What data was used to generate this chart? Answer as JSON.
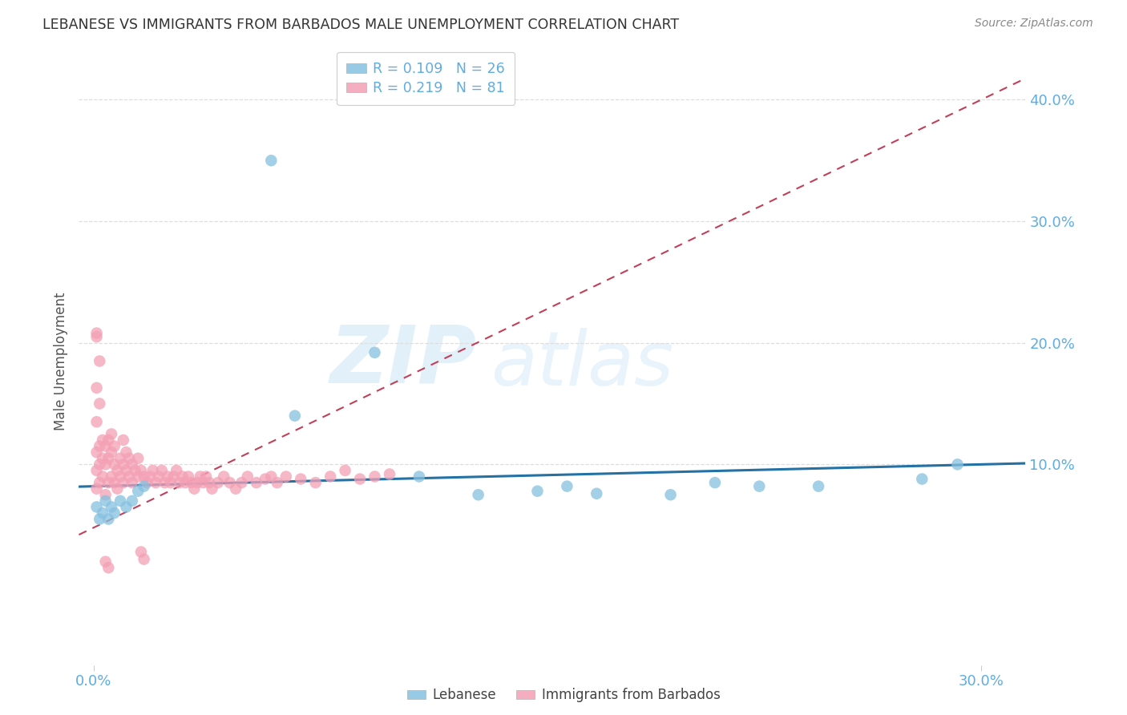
{
  "title": "LEBANESE VS IMMIGRANTS FROM BARBADOS MALE UNEMPLOYMENT CORRELATION CHART",
  "source": "Source: ZipAtlas.com",
  "ylabel": "Male Unemployment",
  "ytick_labels": [
    "40.0%",
    "30.0%",
    "20.0%",
    "10.0%"
  ],
  "ytick_values": [
    0.4,
    0.3,
    0.2,
    0.1
  ],
  "xtick_labels": [
    "0.0%",
    "30.0%"
  ],
  "xtick_values": [
    0.0,
    0.3
  ],
  "xlim": [
    -0.005,
    0.315
  ],
  "ylim": [
    -0.065,
    0.435
  ],
  "legend_label_1": "R = 0.109   N = 26",
  "legend_label_2": "R = 0.219   N = 81",
  "color_blue": "#85c1e0",
  "color_pink": "#f4a0b5",
  "trendline_blue_color": "#2471a3",
  "trendline_pink_color": "#c0405a",
  "watermark_zip": "ZIP",
  "watermark_atlas": "atlas",
  "background_color": "#ffffff",
  "grid_color": "#dddddd",
  "axis_label_color": "#5dade2",
  "title_color": "#333333",
  "source_color": "#888888",
  "bottom_legend_labels": [
    "Lebanese",
    "Immigrants from Barbados"
  ],
  "leb_x": [
    0.001,
    0.002,
    0.003,
    0.004,
    0.005,
    0.006,
    0.007,
    0.009,
    0.011,
    0.013,
    0.015,
    0.017,
    0.06,
    0.068,
    0.095,
    0.11,
    0.13,
    0.15,
    0.16,
    0.17,
    0.195,
    0.21,
    0.225,
    0.245,
    0.28,
    0.292
  ],
  "leb_y": [
    0.065,
    0.055,
    0.06,
    0.07,
    0.055,
    0.065,
    0.06,
    0.07,
    0.065,
    0.07,
    0.078,
    0.082,
    0.35,
    0.14,
    0.192,
    0.09,
    0.075,
    0.078,
    0.082,
    0.076,
    0.075,
    0.085,
    0.082,
    0.082,
    0.088,
    0.1
  ],
  "barb_x": [
    0.001,
    0.001,
    0.001,
    0.002,
    0.002,
    0.002,
    0.003,
    0.003,
    0.003,
    0.004,
    0.004,
    0.004,
    0.005,
    0.005,
    0.005,
    0.006,
    0.006,
    0.006,
    0.007,
    0.007,
    0.007,
    0.008,
    0.008,
    0.009,
    0.009,
    0.01,
    0.01,
    0.01,
    0.011,
    0.011,
    0.012,
    0.012,
    0.013,
    0.013,
    0.014,
    0.015,
    0.015,
    0.016,
    0.017,
    0.018,
    0.019,
    0.02,
    0.021,
    0.022,
    0.023,
    0.024,
    0.025,
    0.026,
    0.027,
    0.028,
    0.029,
    0.03,
    0.031,
    0.032,
    0.033,
    0.034,
    0.035,
    0.036,
    0.037,
    0.038,
    0.039,
    0.04,
    0.042,
    0.044,
    0.046,
    0.048,
    0.05,
    0.052,
    0.055,
    0.058,
    0.06,
    0.062,
    0.065,
    0.07,
    0.075,
    0.08,
    0.085,
    0.09,
    0.095,
    0.1,
    0.001
  ],
  "barb_y": [
    0.08,
    0.095,
    0.11,
    0.085,
    0.1,
    0.115,
    0.09,
    0.105,
    0.12,
    0.1,
    0.115,
    0.075,
    0.105,
    0.12,
    0.085,
    0.11,
    0.125,
    0.09,
    0.115,
    0.085,
    0.1,
    0.095,
    0.08,
    0.105,
    0.09,
    0.1,
    0.085,
    0.12,
    0.095,
    0.11,
    0.09,
    0.105,
    0.1,
    0.085,
    0.095,
    0.105,
    0.09,
    0.095,
    0.09,
    0.085,
    0.09,
    0.095,
    0.085,
    0.09,
    0.095,
    0.085,
    0.09,
    0.085,
    0.09,
    0.095,
    0.085,
    0.09,
    0.085,
    0.09,
    0.085,
    0.08,
    0.085,
    0.09,
    0.085,
    0.09,
    0.085,
    0.08,
    0.085,
    0.09,
    0.085,
    0.08,
    0.085,
    0.09,
    0.085,
    0.088,
    0.09,
    0.085,
    0.09,
    0.088,
    0.085,
    0.09,
    0.095,
    0.088,
    0.09,
    0.092,
    0.205
  ]
}
